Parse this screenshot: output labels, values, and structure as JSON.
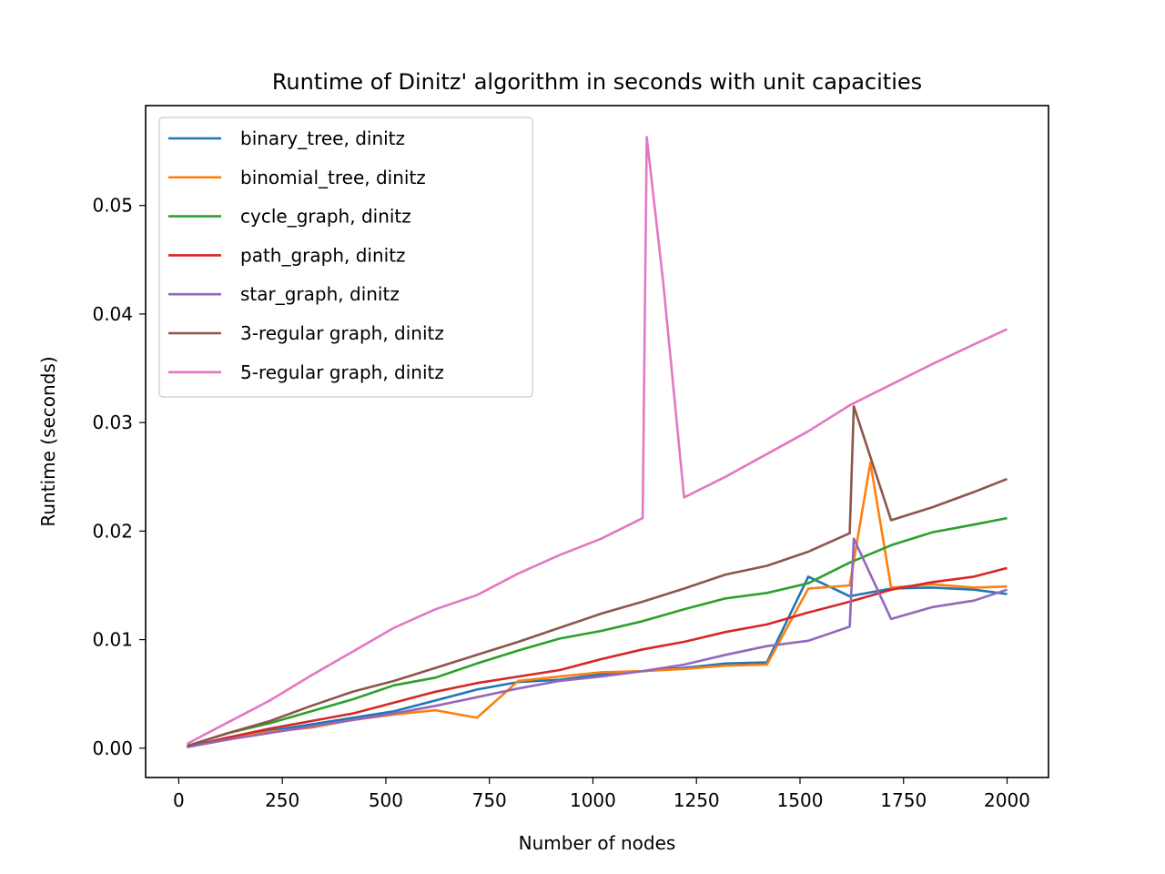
{
  "chart_data": {
    "type": "line",
    "title": "Runtime of Dinitz' algorithm in seconds with unit capacities",
    "xlabel": "Number of nodes",
    "ylabel": "Runtime (seconds)",
    "xlim": [
      -80,
      2100
    ],
    "ylim": [
      -0.0027,
      0.0592
    ],
    "x_ticks": [
      0,
      250,
      500,
      750,
      1000,
      1250,
      1500,
      1750,
      2000
    ],
    "x_tick_labels": [
      "0",
      "250",
      "500",
      "750",
      "1000",
      "1250",
      "1500",
      "1750",
      "2000"
    ],
    "y_ticks": [
      0,
      0.01,
      0.02,
      0.03,
      0.04,
      0.05
    ],
    "y_tick_labels": [
      "0.00",
      "0.01",
      "0.02",
      "0.03",
      "0.04",
      "0.05"
    ],
    "grid": false,
    "legend_position": "upper-left",
    "x": [
      20,
      120,
      220,
      320,
      420,
      520,
      620,
      720,
      820,
      920,
      1020,
      1120,
      1220,
      1320,
      1420,
      1520,
      1620,
      1720,
      1820,
      1920,
      2000
    ],
    "series": [
      {
        "name": "binary_tree, dinitz",
        "color": "#1f77b4",
        "values": [
          0.0001,
          0.0009,
          0.0016,
          0.0022,
          0.0028,
          0.0034,
          0.0044,
          0.0054,
          0.0061,
          0.0063,
          0.0068,
          0.0071,
          0.0074,
          0.0078,
          0.0079,
          0.0158,
          0.014,
          0.0147,
          0.0148,
          0.0146,
          0.0142
        ]
      },
      {
        "name": "binomial_tree, dinitz",
        "color": "#ff7f0e",
        "values": [
          0.0001,
          0.0009,
          0.0015,
          0.0019,
          0.0026,
          0.0031,
          0.0035,
          0.0028,
          0.0062,
          0.0066,
          0.007,
          0.0071,
          0.0073,
          0.0076,
          0.0077,
          0.0147,
          0.015,
          0.0148,
          0.0151,
          0.0148,
          0.0149
        ]
      },
      {
        "name": "cycle_graph, dinitz",
        "color": "#2ca02c",
        "values": [
          0.0002,
          0.0014,
          0.0023,
          0.0034,
          0.0045,
          0.0058,
          0.0065,
          0.0078,
          0.009,
          0.0101,
          0.0108,
          0.0117,
          0.0128,
          0.0138,
          0.0143,
          0.0152,
          0.0171,
          0.0187,
          0.0199,
          0.0206,
          0.0212
        ]
      },
      {
        "name": "path_graph, dinitz",
        "color": "#d62728",
        "values": [
          0.0001,
          0.001,
          0.0018,
          0.0025,
          0.0032,
          0.0042,
          0.0052,
          0.006,
          0.0066,
          0.0072,
          0.0082,
          0.0091,
          0.0098,
          0.0107,
          0.0114,
          0.0125,
          0.0135,
          0.0146,
          0.0153,
          0.0158,
          0.0166
        ]
      },
      {
        "name": "star_graph, dinitz",
        "color": "#9467bd",
        "values": [
          0.0001,
          0.0008,
          0.0014,
          0.002,
          0.0026,
          0.0032,
          0.0039,
          0.0047,
          0.0055,
          0.0062,
          0.0066,
          0.0071,
          0.0077,
          0.0086,
          0.0094,
          0.0099,
          0.0112,
          0.0119,
          0.013,
          0.0136,
          0.0146
        ]
      },
      {
        "name": "3-regular graph, dinitz",
        "color": "#8c564b",
        "values": [
          0.0002,
          0.0014,
          0.0025,
          0.0039,
          0.0052,
          0.0062,
          0.0074,
          0.0086,
          0.0098,
          0.0111,
          0.0124,
          0.0135,
          0.0147,
          0.016,
          0.0168,
          0.0181,
          0.0198,
          0.021,
          0.0222,
          0.0236,
          0.0248
        ]
      },
      {
        "name": "5-regular graph, dinitz",
        "color": "#e377c2",
        "values": [
          0.0004,
          0.0024,
          0.0044,
          0.0067,
          0.0089,
          0.0111,
          0.0128,
          0.0141,
          0.0161,
          0.0178,
          0.0193,
          0.0212,
          0.0231,
          0.025,
          0.0271,
          0.0292,
          0.0316,
          0.0335,
          0.0354,
          0.0372,
          0.0386
        ]
      }
    ],
    "spikes": [
      {
        "series": "5-regular graph, dinitz",
        "x": 1130,
        "y": 0.0563
      },
      {
        "series": "5-regular graph, dinitz",
        "x": 1170,
        "y": 0.0428
      },
      {
        "series": "3-regular graph, dinitz",
        "x": 1630,
        "y": 0.0315
      },
      {
        "series": "binomial_tree, dinitz",
        "x": 1670,
        "y": 0.0263
      },
      {
        "series": "star_graph, dinitz",
        "x": 1630,
        "y": 0.0193
      }
    ]
  }
}
